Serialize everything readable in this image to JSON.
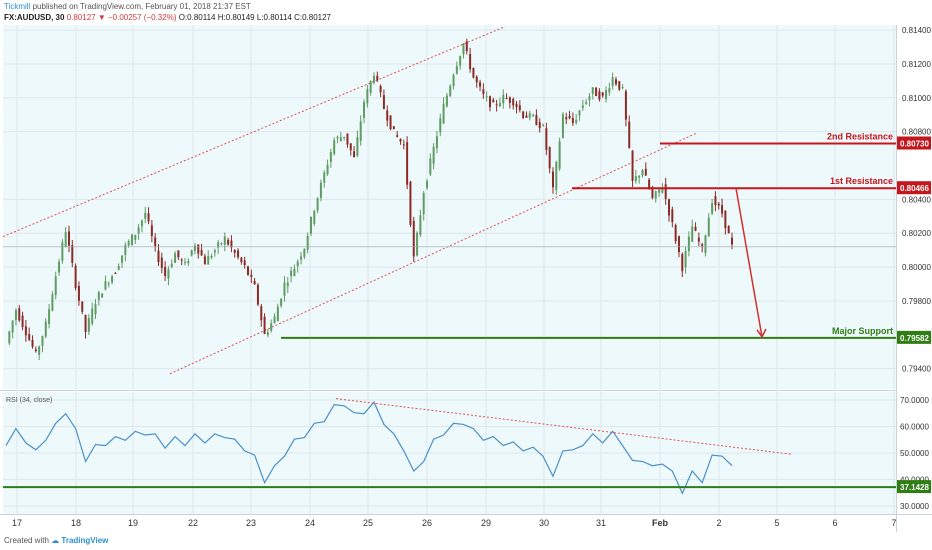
{
  "header": {
    "publisher": "Tickmill",
    "published_text": "published on TradingView.com, February 01, 2018 21:37 EST",
    "symbol": "FX:AUDUSD, 30",
    "last": "0.80127",
    "change": "▼ −0.00257 (−0.32%)",
    "ohlc": "O:0.80114 H:0.80149 L:0.80114 C:0.80127"
  },
  "footer": {
    "created_with": "Created with",
    "brand": "TradingView"
  },
  "colors": {
    "plot_bg": "#eef9fc",
    "candle_up": "#5e9b62",
    "candle_down": "#8b2a25",
    "resistance": "#c4161c",
    "support": "#2f7d14",
    "channel": "#e05050",
    "rsi_line": "#4a90c8",
    "arrow": "#d32f2f",
    "grid": "#dde7ec"
  },
  "chart_data": {
    "type": "candlestick",
    "x_tick_labels": [
      "17",
      "18",
      "19",
      "22",
      "23",
      "24",
      "25",
      "26",
      "29",
      "30",
      "31",
      "Feb",
      "2",
      "5",
      "6",
      "7"
    ],
    "y_tick_labels": [
      "0.81400",
      "0.81200",
      "0.81000",
      "0.80800",
      "0.80400",
      "0.80200",
      "0.80000",
      "0.79800",
      "0.79400"
    ],
    "ylim": [
      0.7928,
      0.8143
    ],
    "price_close_series": [
      0.7955,
      0.7975,
      0.7962,
      0.7948,
      0.7966,
      0.7995,
      0.8022,
      0.799,
      0.7962,
      0.798,
      0.799,
      0.7998,
      0.8012,
      0.802,
      0.8032,
      0.801,
      0.7995,
      0.8008,
      0.8001,
      0.8014,
      0.8003,
      0.801,
      0.8017,
      0.8008,
      0.8,
      0.7988,
      0.796,
      0.797,
      0.799,
      0.8,
      0.8012,
      0.8035,
      0.8055,
      0.8075,
      0.8078,
      0.8064,
      0.8098,
      0.8115,
      0.8094,
      0.8079,
      0.8072,
      0.8005,
      0.8045,
      0.807,
      0.8095,
      0.8115,
      0.8132,
      0.8112,
      0.8101,
      0.8095,
      0.81,
      0.8098,
      0.809,
      0.8088,
      0.8082,
      0.8045,
      0.809,
      0.8085,
      0.8096,
      0.8104,
      0.81,
      0.8112,
      0.8104,
      0.805,
      0.8058,
      0.804,
      0.8048,
      0.8025,
      0.8,
      0.8024,
      0.801,
      0.804,
      0.8032,
      0.8012
    ],
    "series": [
      {
        "name": "RSI (34, close)",
        "values": [
          54,
          58,
          55,
          50,
          56,
          60,
          66,
          58,
          48,
          52,
          54,
          55,
          56,
          57,
          58,
          56,
          53,
          55,
          54,
          56,
          55,
          56,
          57,
          54,
          52,
          48,
          40,
          44,
          50,
          54,
          57,
          60,
          63,
          67,
          69,
          64,
          66,
          68,
          62,
          56,
          52,
          42,
          48,
          54,
          58,
          60,
          62,
          58,
          56,
          55,
          54,
          53,
          52,
          51,
          50,
          40,
          52,
          50,
          54,
          56,
          55,
          57,
          54,
          46,
          48,
          44,
          47,
          42,
          36,
          42,
          40,
          48,
          50,
          44
        ]
      }
    ],
    "rsi_tick_labels": [
      "70.0000",
      "60.0000",
      "50.0000",
      "40.0000",
      "30.0000"
    ],
    "rsi_ylim": [
      27,
      73
    ],
    "levels": [
      {
        "label": "2nd Resistance",
        "value": "0.80730",
        "price": 0.8073,
        "type": "resistance"
      },
      {
        "label": "1st Resistance",
        "value": "0.80466",
        "price": 0.80466,
        "type": "resistance"
      },
      {
        "label": "Major Support",
        "value": "0.79582",
        "price": 0.79582,
        "type": "support"
      }
    ],
    "rsi_level": {
      "value": "37.1428",
      "rsi": 37.1428
    }
  }
}
